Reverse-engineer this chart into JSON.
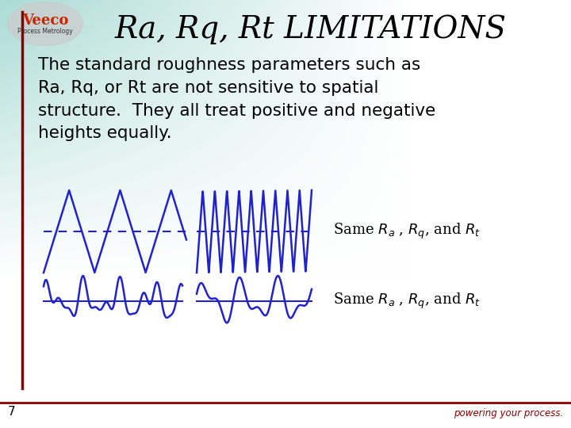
{
  "title": "Ra, Rq, Rt LIMITATIONS",
  "body_text": "The standard roughness parameters such as\nRa, Rq, or Rt are not sensitive to spatial\nstructure.  They all treat positive and negative\nheights equally.",
  "label_top": "Same $R_a$ , $R_q$, and $R_t$",
  "label_bottom": "Same $R_a$ , $R_q$, and $R_t$",
  "footer_text": "powering your process.",
  "page_number": "7",
  "line_color": "#2222cc",
  "title_color": "#000000",
  "text_color": "#000000",
  "footer_color": "#8b0000",
  "accent_color": "#8b0000",
  "bg_teal": [
    0.67,
    0.86,
    0.84
  ],
  "bg_white": [
    1.0,
    1.0,
    1.0
  ],
  "title_fontsize": 28,
  "body_fontsize": 15.5,
  "label_fontsize": 13
}
